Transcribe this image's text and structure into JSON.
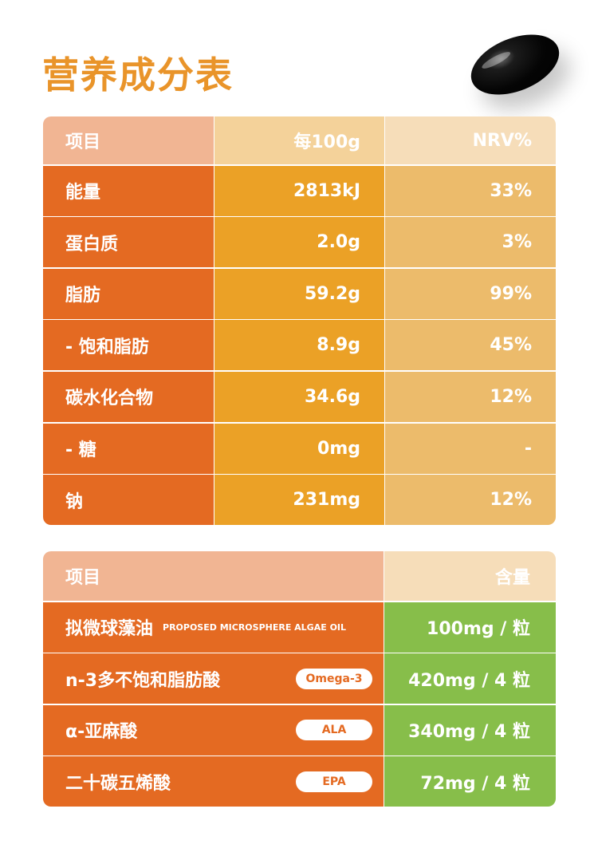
{
  "title": "营养成分表",
  "nutrition_table": {
    "headers": [
      "项目",
      "每100g",
      "NRV%"
    ],
    "rows": [
      {
        "item": "能量",
        "per100g": "2813kJ",
        "nrv": "33%"
      },
      {
        "item": "蛋白质",
        "per100g": "2.0g",
        "nrv": "3%"
      },
      {
        "item": "脂肪",
        "per100g": "59.2g",
        "nrv": "99%"
      },
      {
        "item": "- 饱和脂肪",
        "per100g": "8.9g",
        "nrv": "45%"
      },
      {
        "item": "碳水化合物",
        "per100g": "34.6g",
        "nrv": "12%"
      },
      {
        "item": "- 糖",
        "per100g": "0mg",
        "nrv": "-"
      },
      {
        "item": "钠",
        "per100g": "231mg",
        "nrv": "12%"
      }
    ]
  },
  "content_table": {
    "headers": [
      "项目",
      "含量"
    ],
    "rows": [
      {
        "item": "拟微球藻油",
        "subtitle": "PROPOSED MICROSPHERE ALGAE OIL",
        "tag": "",
        "amount": "100mg / 粒"
      },
      {
        "item": "n-3多不饱和脂肪酸",
        "subtitle": "",
        "tag": "Omega-3",
        "amount": "420mg / 4 粒"
      },
      {
        "item": "α-亚麻酸",
        "subtitle": "",
        "tag": "ALA",
        "amount": "340mg / 4 粒"
      },
      {
        "item": "二十碳五烯酸",
        "subtitle": "",
        "tag": "EPA",
        "amount": "72mg / 4 粒"
      }
    ]
  },
  "colors": {
    "title": "#e9942a",
    "col1": "#e46a22",
    "col2": "#eba126",
    "col3": "#ecbb6b",
    "green": "#87be4a"
  }
}
